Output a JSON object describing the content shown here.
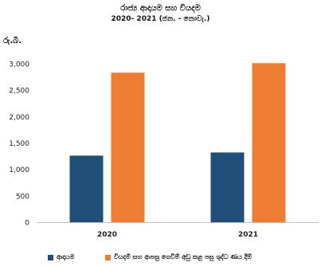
{
  "chart_data": {
    "type": "bar",
    "title": "රාජ්‍ය ආදායම සහ වියදම",
    "subtitle": "2020- 2021 (ජන. - නොවැ.)",
    "ylabel": "රු.බි.",
    "xlabel": "",
    "categories": [
      "2020",
      "2021"
    ],
    "ylim": [
      0,
      3000
    ],
    "yticks": [
      "0",
      "500",
      "1,000",
      "1,500",
      "2,000",
      "2,500",
      "3,000"
    ],
    "ytick_values": [
      0,
      500,
      1000,
      1500,
      2000,
      2500,
      3000
    ],
    "grid": false,
    "legend_position": "bottom",
    "series": [
      {
        "name": "ආදායම",
        "values": [
          1260,
          1320
        ],
        "color": "#1f4e79"
      },
      {
        "name": "වියදම් සහ ආපසු ගෙවීම් අඩු කළ පසු ශුද්ධ ණය දීම්",
        "values": [
          2830,
          3010
        ],
        "color": "#ed7d31"
      }
    ]
  }
}
